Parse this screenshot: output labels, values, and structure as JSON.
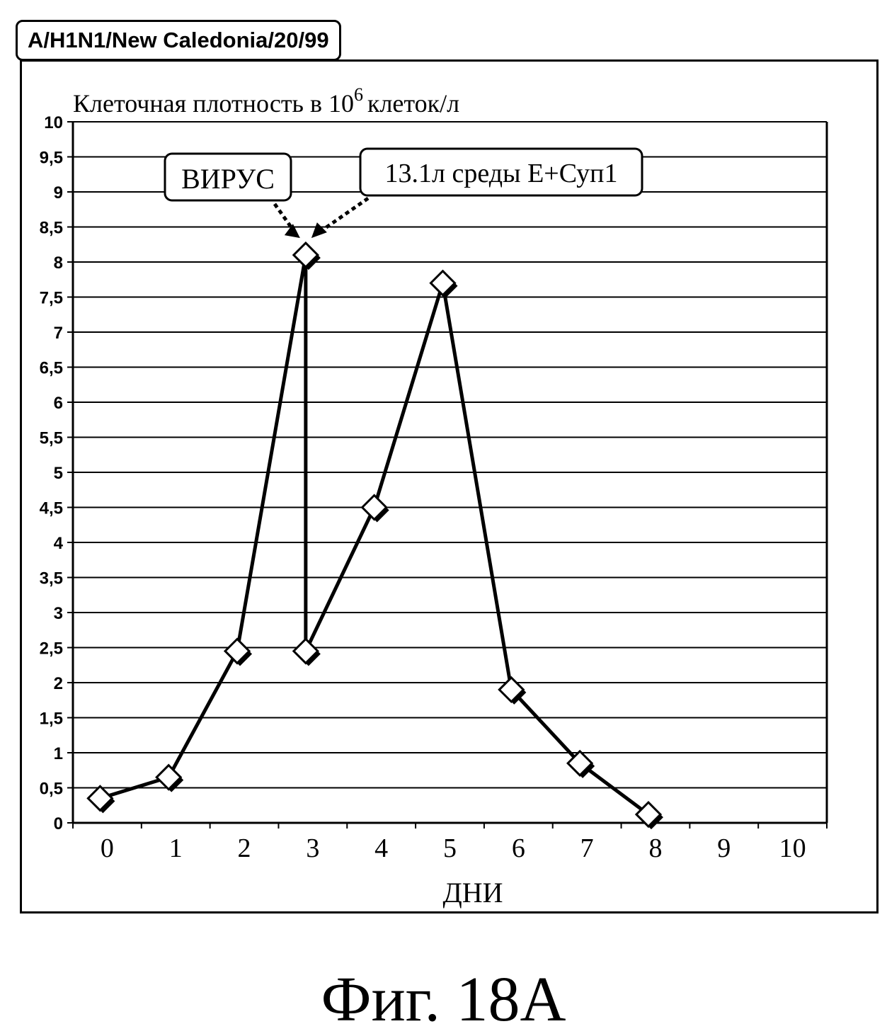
{
  "strain_label": "A/H1N1/New Caledonia/20/99",
  "figure_caption": "Фиг. 18А",
  "chart_data": {
    "type": "line",
    "ylabel_main": "Клеточная плотность в 10",
    "ylabel_sup": "6",
    "ylabel_tail": "клеток/л",
    "xlabel": "ДНИ",
    "xlim": [
      0,
      10
    ],
    "ylim": [
      0,
      10
    ],
    "x_ticks": [
      "0",
      "1",
      "2",
      "3",
      "4",
      "5",
      "6",
      "7",
      "8",
      "9",
      "10"
    ],
    "y_ticks": [
      "0",
      "0,5",
      "1",
      "1,5",
      "2",
      "2,5",
      "3",
      "3,5",
      "4",
      "4,5",
      "5",
      "5,5",
      "6",
      "6,5",
      "7",
      "7,5",
      "8",
      "8,5",
      "9",
      "9,5",
      "10"
    ],
    "grid": "horizontal",
    "series": [
      {
        "points": [
          {
            "x": 0,
            "y": 0.35
          },
          {
            "x": 1,
            "y": 0.65
          },
          {
            "x": 2,
            "y": 2.45
          },
          {
            "x": 3,
            "y": 8.1
          },
          {
            "x": 3,
            "y": 2.45
          },
          {
            "x": 4,
            "y": 4.5
          },
          {
            "x": 5,
            "y": 7.7
          },
          {
            "x": 6,
            "y": 1.9
          },
          {
            "x": 7,
            "y": 0.85
          },
          {
            "x": 8,
            "y": 0.12
          }
        ]
      }
    ],
    "annotations": [
      {
        "text": "ВИРУС",
        "target": {
          "x": 3,
          "y": 8.1
        }
      },
      {
        "text": "13.1л среды Е+Суп1",
        "target": {
          "x": 3,
          "y": 8.1
        }
      }
    ]
  }
}
